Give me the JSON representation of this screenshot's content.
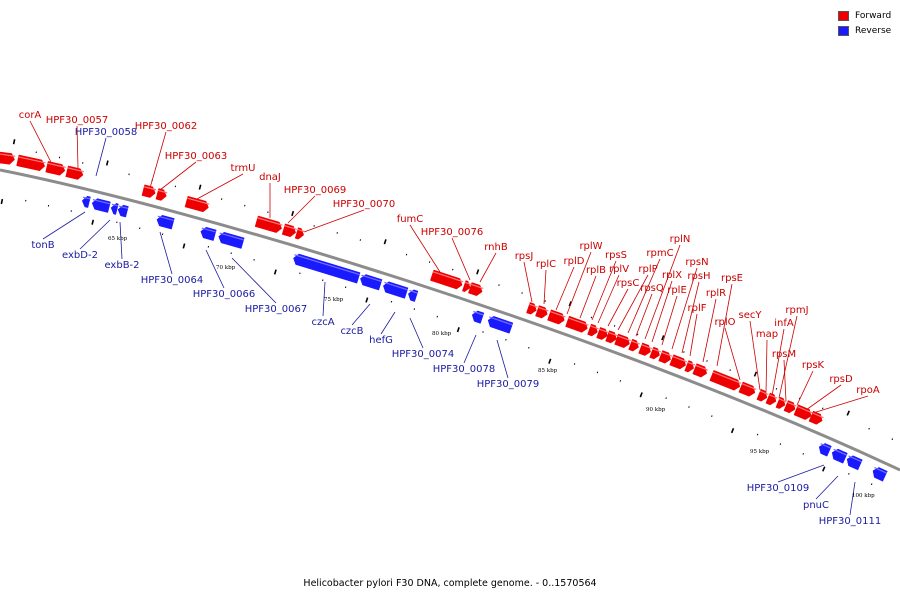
{
  "colors": {
    "forward": "#ee0000",
    "reverse": "#1a1aff",
    "backbone": "#8c8c8c",
    "fwd_label": "#cc0000",
    "rev_label": "#1a1aa0"
  },
  "legend": {
    "forward_label": "Forward",
    "reverse_label": "Reverse"
  },
  "caption": "Helicobacter pylori F30 DNA, complete genome. - 0..1570564",
  "kbp_labels": [
    "65 kbp",
    "70 kbp",
    "75 kbp",
    "80 kbp",
    "85 kbp",
    "90 kbp",
    "95 kbp",
    "100 kbp"
  ],
  "genes": {
    "forward": [
      "corA",
      "HPF30_0057",
      "HPF30_0062",
      "HPF30_0063",
      "trmU",
      "dnaJ",
      "HPF30_0069",
      "HPF30_0070",
      "fumC",
      "HPF30_0076",
      "rnhB",
      "rpsJ",
      "rplC",
      "rplD",
      "rplW",
      "rplB",
      "rpsS",
      "rplV",
      "rpsC",
      "rplP",
      "rpmC",
      "rpsQ",
      "rplN",
      "rplX",
      "rplE",
      "rpsN",
      "rpsH",
      "rplF",
      "rplR",
      "rpsE",
      "rplO",
      "secY",
      "map",
      "infA",
      "rpmJ",
      "rpsM",
      "rpsK",
      "rpsD",
      "rpoA"
    ],
    "reverse": [
      "HPF30_0058",
      "tonB",
      "exbD-2",
      "exbB-2",
      "HPF30_0064",
      "HPF30_0066",
      "HPF30_0067",
      "czcA",
      "czcB",
      "hefG",
      "HPF30_0074",
      "HPF30_0078",
      "HPF30_0079",
      "HPF30_0109",
      "pnuC",
      "HPF30_0111"
    ]
  }
}
